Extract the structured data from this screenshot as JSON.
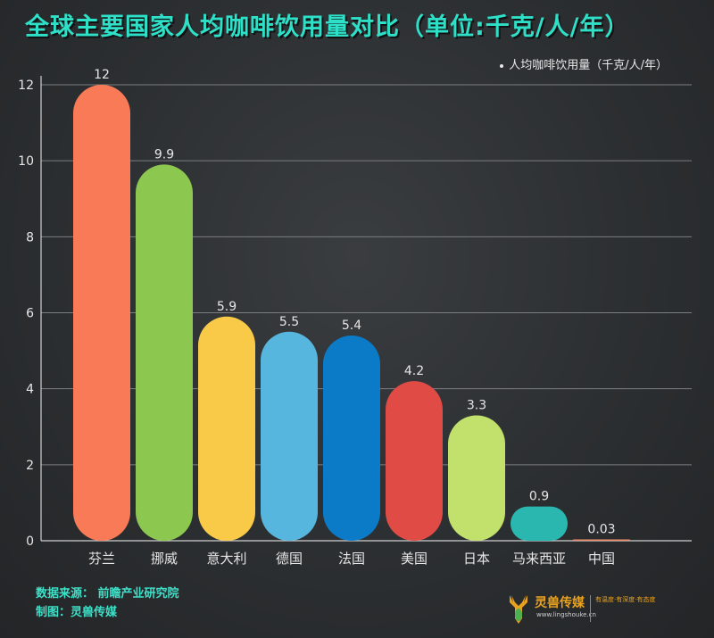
{
  "title": "全球主要国家人均咖啡饮用量对比（单位:千克/人/年）",
  "legend_label": "· 人均咖啡饮用量（千克/人/年）",
  "footer": {
    "source": "数据来源：  前瞻产业研究院",
    "made_by": "制图：灵兽传媒"
  },
  "brand": {
    "name": "灵兽传媒",
    "url": "www.lingshouke.cn",
    "slogan": "有温度·有深度·有态度"
  },
  "colors": {
    "title": "#2fe0c8",
    "background": "#2e3133",
    "grid": "#7b7e80",
    "axis_text": "#e6e6e6"
  },
  "chart_data": {
    "type": "bar",
    "title": "全球主要国家人均咖啡饮用量对比（单位:千克/人/年）",
    "xlabel": "",
    "ylabel": "",
    "ylim": [
      0,
      12
    ],
    "yticks": [
      0,
      2,
      4,
      6,
      8,
      10,
      12
    ],
    "grid": true,
    "legend_position": "top-right",
    "categories": [
      "芬兰",
      "挪威",
      "意大利",
      "德国",
      "法国",
      "美国",
      "日本",
      "马来西亚",
      "中国"
    ],
    "series": [
      {
        "name": "人均咖啡饮用量（千克/人/年）",
        "values": [
          12,
          9.9,
          5.9,
          5.5,
          5.4,
          4.2,
          3.3,
          0.9,
          0.03
        ],
        "labels": [
          "12",
          "9.9",
          "5.9",
          "5.5",
          "5.4",
          "4.2",
          "3.3",
          "0.9",
          "0.03"
        ],
        "colors": [
          "#f97a56",
          "#8cc850",
          "#f8ca47",
          "#57b6de",
          "#0b7bc7",
          "#e04b45",
          "#c2e06c",
          "#2ab7b0",
          "#f28c6c"
        ]
      }
    ]
  }
}
